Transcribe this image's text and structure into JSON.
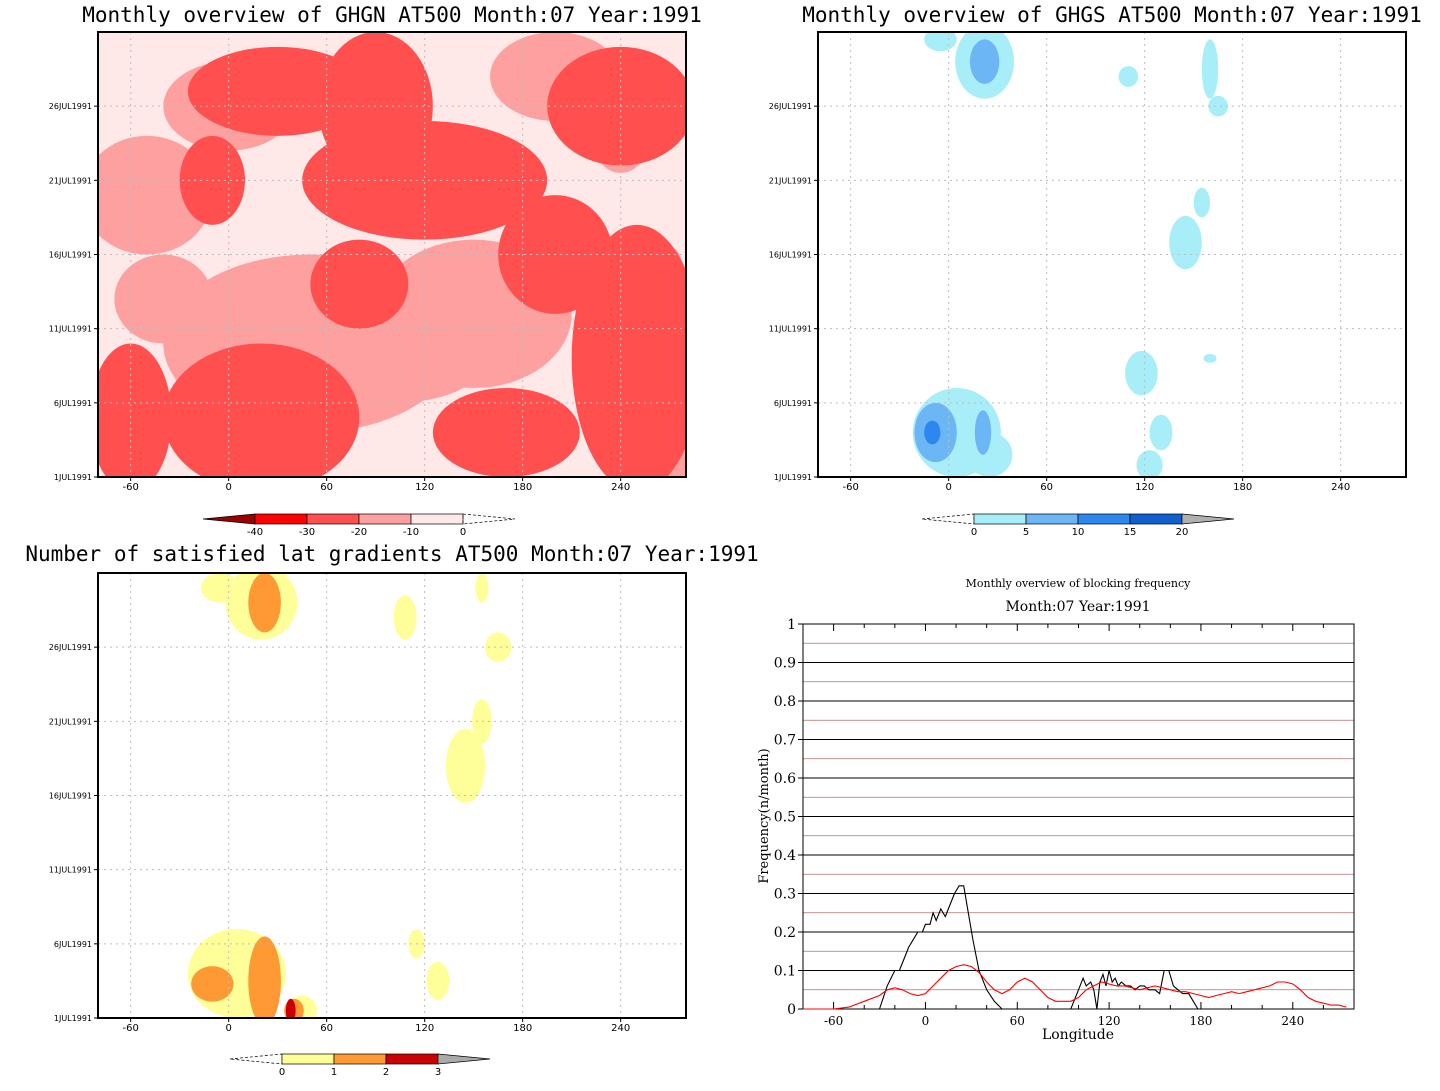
{
  "palettes": {
    "red": [
      "#9c0000",
      "#ff0000",
      "#ff4f4f",
      "#ffa0a0",
      "#ffe8e8"
    ],
    "blue": [
      "#a8eef8",
      "#6cb6f6",
      "#2c88ee",
      "#1060d0",
      "#b0b0b0"
    ],
    "yellow": [
      "#ffff99",
      "#ff9933",
      "#cc0000",
      "#aaaaaa"
    ]
  },
  "chart_data": [
    {
      "type": "heatmap",
      "title": "Monthly overview of GHGN AT500 Month:07 Year:1991",
      "x_ticks": [
        "-60",
        "0",
        "60",
        "120",
        "180",
        "240"
      ],
      "x_tick_values": [
        -60,
        0,
        60,
        120,
        180,
        240
      ],
      "xlim": [
        -80,
        280
      ],
      "y_ticks": [
        "1JUL1991",
        "6JUL1991",
        "11JUL1991",
        "16JUL1991",
        "21JUL1991",
        "26JUL1991"
      ],
      "y_tick_values": [
        1,
        6,
        11,
        16,
        21,
        26
      ],
      "ylim": [
        1,
        31
      ],
      "legend": [
        "-40",
        "-30",
        "-20",
        "-10",
        "0"
      ],
      "legend_palette": "red",
      "regions": [
        {
          "level": 3,
          "lon": 10,
          "day": 4,
          "rx": 38,
          "ry": 3.5
        },
        {
          "level": 3,
          "lon": 260,
          "day": 2,
          "rx": 30,
          "ry": 2.5
        },
        {
          "level": 3,
          "lon": 90,
          "day": 27,
          "rx": 15,
          "ry": 2.5
        },
        {
          "level": 3,
          "lon": 240,
          "day": 24,
          "rx": 18,
          "ry": 2.5
        },
        {
          "level": 3,
          "lon": 165,
          "day": 20,
          "rx": 10,
          "ry": 1.5
        },
        {
          "level": 3,
          "lon": 270,
          "day": 15,
          "rx": 8,
          "ry": 1.5
        },
        {
          "level": 3,
          "lon": 130,
          "day": 22,
          "rx": 6,
          "ry": 1
        },
        {
          "level": 2,
          "lon": 20,
          "day": 5,
          "rx": 60,
          "ry": 5
        },
        {
          "level": 2,
          "lon": 250,
          "day": 9,
          "rx": 40,
          "ry": 9
        },
        {
          "level": 2,
          "lon": 120,
          "day": 21,
          "rx": 75,
          "ry": 4
        },
        {
          "level": 2,
          "lon": 30,
          "day": 27,
          "rx": 55,
          "ry": 3
        },
        {
          "level": 2,
          "lon": 240,
          "day": 26,
          "rx": 45,
          "ry": 4
        },
        {
          "level": 2,
          "lon": 90,
          "day": 26,
          "rx": 35,
          "ry": 5
        },
        {
          "level": 2,
          "lon": -60,
          "day": 5,
          "rx": 25,
          "ry": 5
        },
        {
          "level": 2,
          "lon": 170,
          "day": 4,
          "rx": 45,
          "ry": 3
        },
        {
          "level": 2,
          "lon": 80,
          "day": 14,
          "rx": 30,
          "ry": 3
        },
        {
          "level": 2,
          "lon": -10,
          "day": 21,
          "rx": 20,
          "ry": 3
        },
        {
          "level": 2,
          "lon": 200,
          "day": 16,
          "rx": 35,
          "ry": 4
        }
      ]
    },
    {
      "type": "heatmap",
      "title": "Monthly overview of GHGS AT500 Month:07 Year:1991",
      "x_ticks": [
        "-60",
        "0",
        "60",
        "120",
        "180",
        "240"
      ],
      "x_tick_values": [
        -60,
        0,
        60,
        120,
        180,
        240
      ],
      "xlim": [
        -80,
        280
      ],
      "y_ticks": [
        "1JUL1991",
        "6JUL1991",
        "11JUL1991",
        "16JUL1991",
        "21JUL1991",
        "26JUL1991"
      ],
      "y_tick_values": [
        1,
        6,
        11,
        16,
        21,
        26
      ],
      "ylim": [
        1,
        31
      ],
      "legend": [
        "0",
        "5",
        "10",
        "15",
        "20"
      ],
      "legend_palette": "blue",
      "regions": [
        {
          "level": 0,
          "lon": 5,
          "day": 4,
          "rx": 27,
          "ry": 3
        },
        {
          "level": 0,
          "lon": 25,
          "day": 2.5,
          "rx": 14,
          "ry": 1.5
        },
        {
          "level": 0,
          "lon": 22,
          "day": 29,
          "rx": 18,
          "ry": 2.5
        },
        {
          "level": 0,
          "lon": -5,
          "day": 30.5,
          "rx": 10,
          "ry": 0.8
        },
        {
          "level": 0,
          "lon": 118,
          "day": 8,
          "rx": 10,
          "ry": 1.5
        },
        {
          "level": 0,
          "lon": 130,
          "day": 4,
          "rx": 7,
          "ry": 1.2
        },
        {
          "level": 0,
          "lon": 123,
          "day": 1.8,
          "rx": 8,
          "ry": 1
        },
        {
          "level": 0,
          "lon": 145,
          "day": 16.8,
          "rx": 10,
          "ry": 1.8
        },
        {
          "level": 0,
          "lon": 155,
          "day": 19.5,
          "rx": 5,
          "ry": 1
        },
        {
          "level": 0,
          "lon": 160,
          "day": 28.5,
          "rx": 5,
          "ry": 2
        },
        {
          "level": 0,
          "lon": 165,
          "day": 26,
          "rx": 6,
          "ry": 0.7
        },
        {
          "level": 0,
          "lon": 110,
          "day": 28,
          "rx": 6,
          "ry": 0.7
        },
        {
          "level": 0,
          "lon": 160,
          "day": 9,
          "rx": 4,
          "ry": 0.3
        },
        {
          "level": 1,
          "lon": -8,
          "day": 4,
          "rx": 13,
          "ry": 2
        },
        {
          "level": 1,
          "lon": 22,
          "day": 29,
          "rx": 9,
          "ry": 1.5
        },
        {
          "level": 1,
          "lon": 21,
          "day": 4,
          "rx": 5,
          "ry": 1.5
        },
        {
          "level": 2,
          "lon": -10,
          "day": 4,
          "rx": 5,
          "ry": 0.8
        }
      ]
    },
    {
      "type": "heatmap",
      "title": "Number of satisfied lat gradients AT500 Month:07 Year:1991",
      "x_ticks": [
        "-60",
        "0",
        "60",
        "120",
        "180",
        "240"
      ],
      "x_tick_values": [
        -60,
        0,
        60,
        120,
        180,
        240
      ],
      "xlim": [
        -80,
        280
      ],
      "y_ticks": [
        "1JUL1991",
        "6JUL1991",
        "11JUL1991",
        "16JUL1991",
        "21JUL1991",
        "26JUL1991"
      ],
      "y_tick_values": [
        1,
        6,
        11,
        16,
        21,
        26
      ],
      "ylim": [
        1,
        31
      ],
      "legend": [
        "0",
        "1",
        "2",
        "3"
      ],
      "legend_palette": "yellow",
      "regions": [
        {
          "level": 0,
          "lon": 5,
          "day": 4,
          "rx": 30,
          "ry": 3
        },
        {
          "level": 0,
          "lon": 20,
          "day": 29,
          "rx": 22,
          "ry": 2.5
        },
        {
          "level": 0,
          "lon": -5,
          "day": 30,
          "rx": 12,
          "ry": 1
        },
        {
          "level": 0,
          "lon": 108,
          "day": 28,
          "rx": 7,
          "ry": 1.5
        },
        {
          "level": 0,
          "lon": 165,
          "day": 26,
          "rx": 8,
          "ry": 1
        },
        {
          "level": 0,
          "lon": 155,
          "day": 30,
          "rx": 4,
          "ry": 1
        },
        {
          "level": 0,
          "lon": 145,
          "day": 18,
          "rx": 12,
          "ry": 2.5
        },
        {
          "level": 0,
          "lon": 155,
          "day": 21,
          "rx": 6,
          "ry": 1.5
        },
        {
          "level": 0,
          "lon": 115,
          "day": 6,
          "rx": 5,
          "ry": 1
        },
        {
          "level": 0,
          "lon": 128,
          "day": 3.5,
          "rx": 7,
          "ry": 1.3
        },
        {
          "level": 0,
          "lon": 45,
          "day": 1.5,
          "rx": 9,
          "ry": 1
        },
        {
          "level": 1,
          "lon": -10,
          "day": 3.3,
          "rx": 13,
          "ry": 1.2
        },
        {
          "level": 1,
          "lon": 22,
          "day": 3.5,
          "rx": 10,
          "ry": 3
        },
        {
          "level": 1,
          "lon": 22,
          "day": 29,
          "rx": 10,
          "ry": 2
        },
        {
          "level": 1,
          "lon": 40,
          "day": 1.5,
          "rx": 6,
          "ry": 0.8
        },
        {
          "level": 2,
          "lon": 38,
          "day": 1.5,
          "rx": 3,
          "ry": 0.8
        }
      ]
    },
    {
      "type": "line",
      "title": "Monthly overview of blocking frequency",
      "subtitle": "Month:07 Year:1991",
      "xlabel": "Longitude",
      "ylabel": "Frequency(n/month)",
      "x_ticks": [
        "-60",
        "0",
        "60",
        "120",
        "180",
        "240"
      ],
      "x_tick_values": [
        -60,
        0,
        60,
        120,
        180,
        240
      ],
      "y_ticks": [
        "0",
        "0.1",
        "0.2",
        "0.3",
        "0.4",
        "0.5",
        "0.6",
        "0.7",
        "0.8",
        "0.9",
        "1"
      ],
      "y_tick_values": [
        0,
        0.1,
        0.2,
        0.3,
        0.4,
        0.5,
        0.6,
        0.7,
        0.8,
        0.9,
        1
      ],
      "xlim": [
        -80,
        280
      ],
      "ylim": [
        0,
        1
      ],
      "grid": true,
      "series": [
        {
          "color": "#000000",
          "x": [
            -80,
            -30,
            -25,
            -20,
            -17,
            -14,
            -11,
            -8,
            -5,
            -2,
            0,
            3,
            5,
            7,
            10,
            13,
            16,
            19,
            22,
            25,
            28,
            31,
            35,
            40,
            45,
            50,
            55,
            60,
            95,
            100,
            103,
            105,
            108,
            110,
            112,
            114,
            116,
            118,
            120,
            122,
            124,
            126,
            128,
            131,
            134,
            137,
            140,
            143,
            146,
            150,
            153,
            156,
            159,
            162,
            165,
            168,
            172,
            175,
            178,
            280
          ],
          "y": [
            0,
            0,
            0.06,
            0.1,
            0.1,
            0.13,
            0.16,
            0.18,
            0.2,
            0.2,
            0.22,
            0.22,
            0.25,
            0.23,
            0.26,
            0.24,
            0.27,
            0.3,
            0.32,
            0.32,
            0.25,
            0.18,
            0.1,
            0.05,
            0.02,
            0,
            0,
            0,
            0,
            0.05,
            0.08,
            0.06,
            0.07,
            0.05,
            0,
            0.07,
            0.09,
            0.06,
            0.1,
            0.07,
            0.08,
            0.06,
            0.07,
            0.06,
            0.06,
            0.05,
            0.06,
            0.06,
            0.05,
            0.05,
            0.04,
            0.1,
            0.1,
            0.06,
            0.05,
            0.04,
            0.04,
            0.02,
            0,
            0
          ]
        },
        {
          "color": "#ff0000",
          "x": [
            -80,
            -60,
            -50,
            -40,
            -30,
            -25,
            -20,
            -15,
            -10,
            -5,
            0,
            5,
            10,
            15,
            20,
            25,
            30,
            35,
            40,
            45,
            50,
            55,
            60,
            65,
            70,
            75,
            80,
            85,
            90,
            95,
            100,
            105,
            110,
            115,
            120,
            125,
            130,
            135,
            140,
            145,
            150,
            155,
            160,
            165,
            170,
            175,
            180,
            185,
            190,
            195,
            200,
            205,
            210,
            215,
            220,
            225,
            230,
            235,
            240,
            245,
            250,
            255,
            260,
            265,
            270,
            275
          ],
          "y": [
            0,
            0,
            0.005,
            0.02,
            0.035,
            0.05,
            0.055,
            0.05,
            0.04,
            0.035,
            0.04,
            0.06,
            0.08,
            0.1,
            0.11,
            0.115,
            0.11,
            0.095,
            0.07,
            0.05,
            0.04,
            0.05,
            0.07,
            0.08,
            0.07,
            0.05,
            0.03,
            0.02,
            0.02,
            0.02,
            0.03,
            0.05,
            0.06,
            0.07,
            0.065,
            0.06,
            0.06,
            0.055,
            0.05,
            0.055,
            0.06,
            0.055,
            0.05,
            0.045,
            0.045,
            0.04,
            0.035,
            0.03,
            0.035,
            0.04,
            0.045,
            0.04,
            0.045,
            0.05,
            0.055,
            0.06,
            0.07,
            0.07,
            0.065,
            0.05,
            0.03,
            0.02,
            0.015,
            0.01,
            0.01,
            0.005
          ]
        }
      ]
    }
  ]
}
